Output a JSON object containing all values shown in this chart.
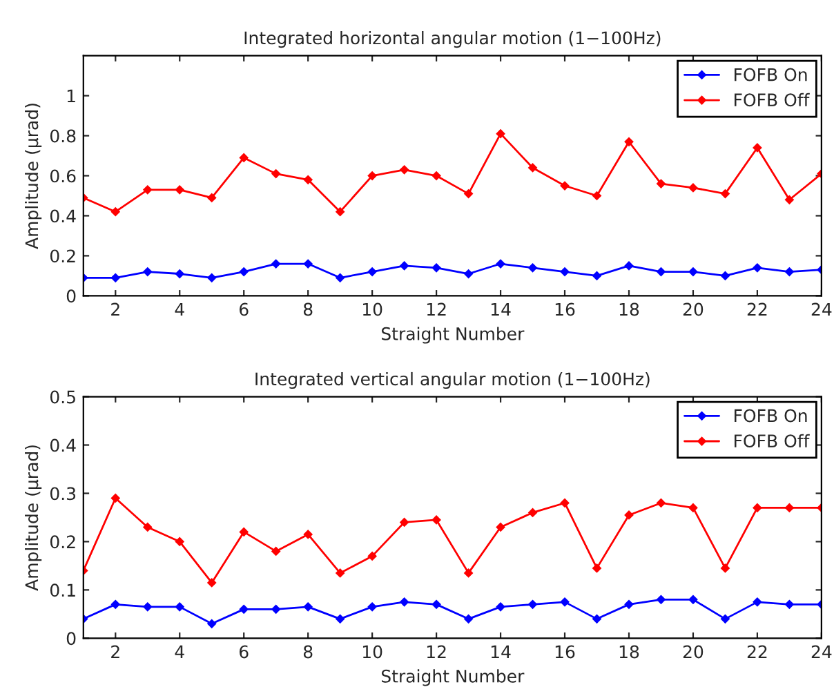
{
  "chart_data": [
    {
      "type": "line",
      "title": "Integrated horizontal angular motion (1−100Hz)",
      "xlabel": "Straight Number",
      "ylabel": "Amplitude (μrad)",
      "x": [
        1,
        2,
        3,
        4,
        5,
        6,
        7,
        8,
        9,
        10,
        11,
        12,
        13,
        14,
        15,
        16,
        17,
        18,
        19,
        20,
        21,
        22,
        23,
        24
      ],
      "series": [
        {
          "name": "FOFB On",
          "color": "#0000ff",
          "values": [
            0.09,
            0.09,
            0.12,
            0.11,
            0.09,
            0.12,
            0.16,
            0.16,
            0.09,
            0.12,
            0.15,
            0.14,
            0.11,
            0.16,
            0.14,
            0.12,
            0.1,
            0.15,
            0.12,
            0.12,
            0.1,
            0.14,
            0.12,
            0.13
          ]
        },
        {
          "name": "FOFB Off",
          "color": "#ff0000",
          "values": [
            0.49,
            0.42,
            0.53,
            0.53,
            0.49,
            0.69,
            0.61,
            0.58,
            0.42,
            0.6,
            0.63,
            0.6,
            0.51,
            0.81,
            0.64,
            0.55,
            0.5,
            0.77,
            0.56,
            0.54,
            0.51,
            0.74,
            0.48,
            0.61
          ]
        }
      ],
      "xlim": [
        1,
        24
      ],
      "xticks": [
        2,
        4,
        6,
        8,
        10,
        12,
        14,
        16,
        18,
        20,
        22,
        24
      ],
      "ylim": [
        0,
        1.2
      ],
      "yticks": [
        0,
        0.2,
        0.4,
        0.6,
        0.8,
        1
      ],
      "grid": false,
      "legend": "top right",
      "marker": "diamond",
      "line_style": "solid"
    },
    {
      "type": "line",
      "title": "Integrated vertical angular motion (1−100Hz)",
      "xlabel": "Straight Number",
      "ylabel": "Amplitude (μrad)",
      "x": [
        1,
        2,
        3,
        4,
        5,
        6,
        7,
        8,
        9,
        10,
        11,
        12,
        13,
        14,
        15,
        16,
        17,
        18,
        19,
        20,
        21,
        22,
        23,
        24
      ],
      "series": [
        {
          "name": "FOFB On",
          "color": "#0000ff",
          "values": [
            0.04,
            0.07,
            0.065,
            0.065,
            0.03,
            0.06,
            0.06,
            0.065,
            0.04,
            0.065,
            0.075,
            0.07,
            0.04,
            0.065,
            0.07,
            0.075,
            0.04,
            0.07,
            0.08,
            0.08,
            0.04,
            0.075,
            0.07,
            0.07
          ]
        },
        {
          "name": "FOFB Off",
          "color": "#ff0000",
          "values": [
            0.14,
            0.29,
            0.23,
            0.2,
            0.115,
            0.22,
            0.18,
            0.215,
            0.135,
            0.17,
            0.24,
            0.245,
            0.135,
            0.23,
            0.26,
            0.28,
            0.145,
            0.255,
            0.28,
            0.27,
            0.145,
            0.27,
            0.27,
            0.27
          ]
        }
      ],
      "xlim": [
        1,
        24
      ],
      "xticks": [
        2,
        4,
        6,
        8,
        10,
        12,
        14,
        16,
        18,
        20,
        22,
        24
      ],
      "ylim": [
        0,
        0.5
      ],
      "yticks": [
        0,
        0.1,
        0.2,
        0.3,
        0.4,
        0.5
      ],
      "grid": false,
      "legend": "top right",
      "marker": "diamond",
      "line_style": "solid"
    }
  ]
}
